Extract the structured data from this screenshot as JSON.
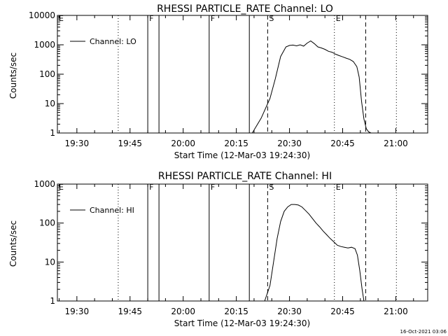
{
  "footer": {
    "timestamp": "16-Oct-2021 03:06"
  },
  "chart_data": [
    {
      "type": "line",
      "title": "RHESSI PARTICLE_RATE Channel: LO",
      "xlabel": "Start Time (12-Mar-03 19:24:30)",
      "ylabel": "Counts/sec",
      "y_scale": "log",
      "xlim": [
        "19:24:30",
        "21:09:00"
      ],
      "ylim": [
        1,
        10000
      ],
      "x_ticks": [
        "19:30",
        "19:45",
        "20:00",
        "20:15",
        "20:30",
        "20:45",
        "21:00"
      ],
      "y_ticks": [
        "1",
        "10",
        "100",
        "1000",
        "10000"
      ],
      "legend": {
        "position": "top-left",
        "entries": [
          "Channel: LO"
        ]
      },
      "markers": [
        {
          "time": "19:24:30",
          "label": "E",
          "style": "dotted"
        },
        {
          "time": "19:41:40",
          "label": "",
          "style": "dotted"
        },
        {
          "time": "19:50:00",
          "label": "F",
          "style": "solid"
        },
        {
          "time": "19:53:10",
          "label": "",
          "style": "solid"
        },
        {
          "time": "20:07:20",
          "label": "F",
          "style": "solid"
        },
        {
          "time": "20:18:40",
          "label": "",
          "style": "solid"
        },
        {
          "time": "20:23:50",
          "label": "S",
          "style": "dashed"
        },
        {
          "time": "20:42:40",
          "label": "E",
          "style": "dotted"
        },
        {
          "time": "20:51:30",
          "label": "",
          "style": "dashed"
        },
        {
          "time": "21:00:10",
          "label": "",
          "style": "dotted"
        }
      ],
      "series": [
        {
          "name": "Channel: LO",
          "x": [
            "20:19:30",
            "20:22:00",
            "20:24:30",
            "20:26:00",
            "20:27:30",
            "20:29:00",
            "20:30:00",
            "20:31:00",
            "20:32:00",
            "20:33:00",
            "20:34:00",
            "20:35:00",
            "20:36:00",
            "20:37:00",
            "20:38:00",
            "20:39:00",
            "20:40:00",
            "20:41:00",
            "20:42:00",
            "20:43:00",
            "20:44:00",
            "20:45:00",
            "20:46:00",
            "20:47:00",
            "20:48:00",
            "20:49:00",
            "20:49:40",
            "20:50:20",
            "20:51:00",
            "20:51:40",
            "20:52:20",
            "20:53:00"
          ],
          "y": [
            1,
            3.2,
            15,
            70,
            400,
            850,
            950,
            980,
            920,
            1000,
            900,
            1150,
            1350,
            1100,
            850,
            780,
            700,
            600,
            560,
            480,
            430,
            390,
            350,
            320,
            270,
            180,
            80,
            12,
            3,
            1.4,
            1.1,
            1
          ]
        }
      ]
    },
    {
      "type": "line",
      "title": "RHESSI PARTICLE_RATE Channel: HI",
      "xlabel": "Start Time (12-Mar-03 19:24:30)",
      "ylabel": "Counts/sec",
      "y_scale": "log",
      "xlim": [
        "19:24:30",
        "21:09:00"
      ],
      "ylim": [
        1,
        1000
      ],
      "x_ticks": [
        "19:30",
        "19:45",
        "20:00",
        "20:15",
        "20:30",
        "20:45",
        "21:00"
      ],
      "y_ticks": [
        "1",
        "10",
        "100",
        "1000"
      ],
      "legend": {
        "position": "top-left",
        "entries": [
          "Channel: HI"
        ]
      },
      "markers": [
        {
          "time": "19:24:30",
          "label": "E",
          "style": "dotted"
        },
        {
          "time": "19:41:40",
          "label": "",
          "style": "dotted"
        },
        {
          "time": "19:50:00",
          "label": "F",
          "style": "solid"
        },
        {
          "time": "19:53:10",
          "label": "",
          "style": "solid"
        },
        {
          "time": "20:07:20",
          "label": "F",
          "style": "solid"
        },
        {
          "time": "20:18:40",
          "label": "",
          "style": "solid"
        },
        {
          "time": "20:23:50",
          "label": "S",
          "style": "dashed"
        },
        {
          "time": "20:42:40",
          "label": "E",
          "style": "dotted"
        },
        {
          "time": "20:51:30",
          "label": "",
          "style": "dashed"
        },
        {
          "time": "21:00:10",
          "label": "",
          "style": "dotted"
        }
      ],
      "series": [
        {
          "name": "Channel: HI",
          "x": [
            "20:23:00",
            "20:24:30",
            "20:25:30",
            "20:26:30",
            "20:27:30",
            "20:28:30",
            "20:29:30",
            "20:30:30",
            "20:31:30",
            "20:32:30",
            "20:33:30",
            "20:34:30",
            "20:35:30",
            "20:36:30",
            "20:37:30",
            "20:38:30",
            "20:39:30",
            "20:40:30",
            "20:41:30",
            "20:42:30",
            "20:43:30",
            "20:44:30",
            "20:45:30",
            "20:46:30",
            "20:47:30",
            "20:48:30",
            "20:49:10",
            "20:49:50",
            "20:50:30",
            "20:51:00"
          ],
          "y": [
            1,
            2.5,
            10,
            40,
            110,
            200,
            260,
            300,
            300,
            290,
            260,
            210,
            170,
            130,
            100,
            80,
            62,
            50,
            40,
            33,
            27,
            25,
            24,
            23,
            24,
            22,
            15,
            6,
            2,
            1
          ]
        }
      ]
    }
  ]
}
